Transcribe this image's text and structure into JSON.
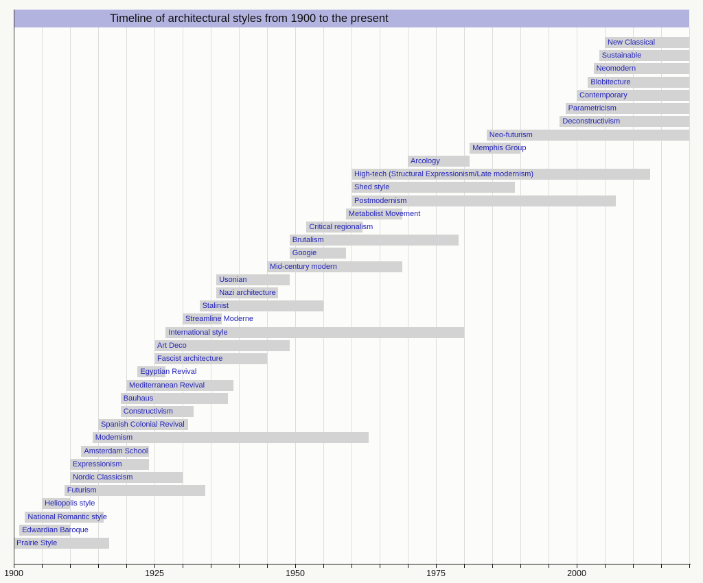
{
  "colors": {
    "page_background": "#f8f8f5",
    "plot_background": "#fcfcfa",
    "title_background": "#b3b3e0",
    "bar_fill": "#d3d3d3",
    "bar_label_text": "#2222bb",
    "axis_line": "#1a1a1a",
    "gridline": "#dddddd"
  },
  "chart_data": {
    "type": "bar",
    "variant": "horizontal-timeline",
    "title": "Timeline of architectural styles from 1900 to the present",
    "xlabel": "",
    "ylabel": "",
    "axis": {
      "start_year": 1900,
      "end_year": 2020,
      "minor_tick_step_years": 5,
      "major_tick_labels": [
        "1900",
        "1925",
        "1950",
        "1975",
        "2000"
      ],
      "major_tick_years": [
        1900,
        1925,
        1950,
        1975,
        2000
      ],
      "grid": true,
      "legend": "none"
    },
    "styles": [
      {
        "label": "New Classical",
        "start": 2005,
        "end": 2020,
        "ongoing": true
      },
      {
        "label": "Sustainable",
        "start": 2004,
        "end": 2020,
        "ongoing": true
      },
      {
        "label": "Neomodern",
        "start": 2003,
        "end": 2020,
        "ongoing": true
      },
      {
        "label": "Blobitecture",
        "start": 2002,
        "end": 2020,
        "ongoing": true
      },
      {
        "label": "Contemporary",
        "start": 2000,
        "end": 2020,
        "ongoing": true
      },
      {
        "label": "Parametricism",
        "start": 1998,
        "end": 2020,
        "ongoing": true
      },
      {
        "label": "Deconstructivism",
        "start": 1997,
        "end": 2020,
        "ongoing": true
      },
      {
        "label": "Neo-futurism",
        "start": 1984,
        "end": 2020,
        "ongoing": true
      },
      {
        "label": "Memphis Group",
        "start": 1981,
        "end": 1990,
        "ongoing": false
      },
      {
        "label": "Arcology",
        "start": 1970,
        "end": 1981,
        "ongoing": false
      },
      {
        "label": "High-tech (Structural Expressionism/Late modernism)",
        "start": 1960,
        "end": 2013,
        "ongoing": false
      },
      {
        "label": "Shed style",
        "start": 1960,
        "end": 1989,
        "ongoing": false
      },
      {
        "label": "Postmodernism",
        "start": 1960,
        "end": 2007,
        "ongoing": false
      },
      {
        "label": "Metabolist Movement",
        "start": 1959,
        "end": 1969,
        "ongoing": false
      },
      {
        "label": "Critical regionalism",
        "start": 1952,
        "end": 1962,
        "ongoing": false
      },
      {
        "label": "Brutalism",
        "start": 1949,
        "end": 1979,
        "ongoing": false
      },
      {
        "label": "Googie",
        "start": 1949,
        "end": 1959,
        "ongoing": false
      },
      {
        "label": "Mid-century modern",
        "start": 1945,
        "end": 1969,
        "ongoing": false
      },
      {
        "label": "Usonian",
        "start": 1936,
        "end": 1949,
        "ongoing": false
      },
      {
        "label": "Nazi architecture",
        "start": 1936,
        "end": 1947,
        "ongoing": false
      },
      {
        "label": "Stalinist",
        "start": 1933,
        "end": 1955,
        "ongoing": false
      },
      {
        "label": "Streamline Moderne",
        "start": 1930,
        "end": 1937,
        "ongoing": false
      },
      {
        "label": "International style",
        "start": 1927,
        "end": 1980,
        "ongoing": false
      },
      {
        "label": "Art Deco",
        "start": 1925,
        "end": 1949,
        "ongoing": false
      },
      {
        "label": "Fascist architecture",
        "start": 1925,
        "end": 1945,
        "ongoing": false
      },
      {
        "label": "Egyptian Revival",
        "start": 1922,
        "end": 1927,
        "ongoing": false
      },
      {
        "label": "Mediterranean Revival",
        "start": 1920,
        "end": 1939,
        "ongoing": false
      },
      {
        "label": "Bauhaus",
        "start": 1919,
        "end": 1938,
        "ongoing": false
      },
      {
        "label": "Constructivism",
        "start": 1919,
        "end": 1932,
        "ongoing": false
      },
      {
        "label": "Spanish Colonial Revival",
        "start": 1915,
        "end": 1931,
        "ongoing": false
      },
      {
        "label": "Modernism",
        "start": 1914,
        "end": 1963,
        "ongoing": false
      },
      {
        "label": "Amsterdam School",
        "start": 1912,
        "end": 1924,
        "ongoing": false
      },
      {
        "label": "Expressionism",
        "start": 1910,
        "end": 1924,
        "ongoing": false
      },
      {
        "label": "Nordic Classicism",
        "start": 1910,
        "end": 1930,
        "ongoing": false
      },
      {
        "label": "Futurism",
        "start": 1909,
        "end": 1934,
        "ongoing": false
      },
      {
        "label": "Heliopolis style",
        "start": 1905,
        "end": 1910,
        "ongoing": false
      },
      {
        "label": "National Romantic style",
        "start": 1902,
        "end": 1916,
        "ongoing": false
      },
      {
        "label": "Edwardian Baroque",
        "start": 1901,
        "end": 1910,
        "ongoing": false
      },
      {
        "label": "Prairie Style",
        "start": 1900,
        "end": 1917,
        "ongoing": false
      }
    ]
  }
}
